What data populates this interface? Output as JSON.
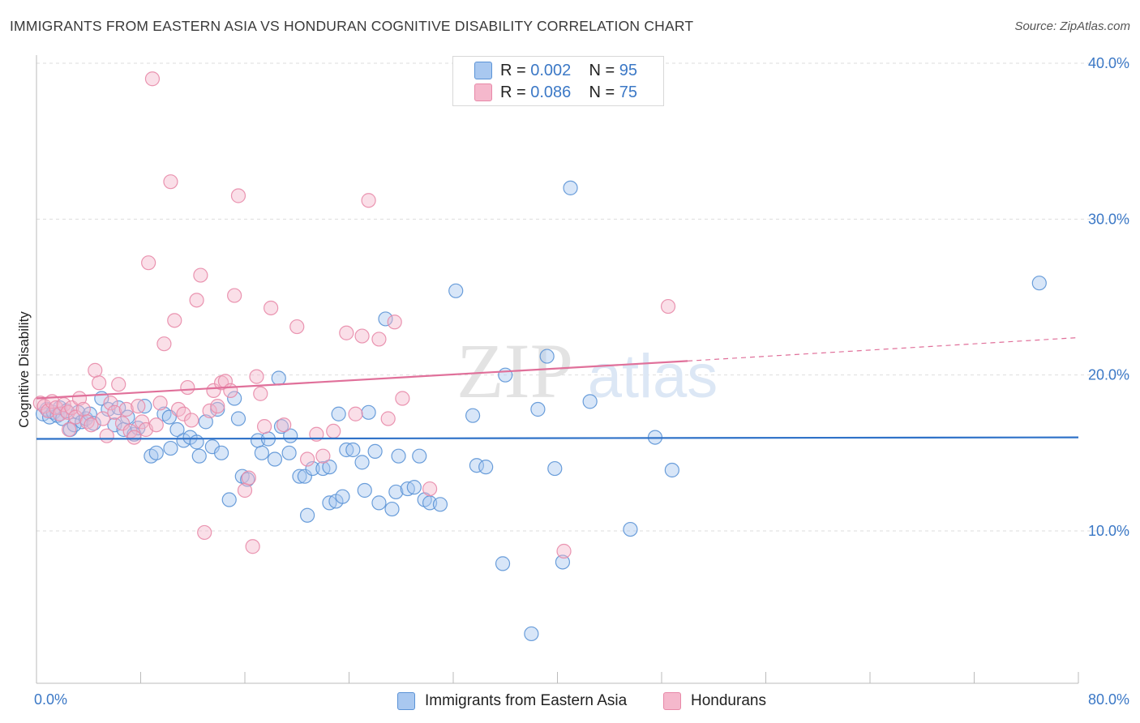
{
  "header": {
    "title": "IMMIGRANTS FROM EASTERN ASIA VS HONDURAN COGNITIVE DISABILITY CORRELATION CHART",
    "source": "Source: ZipAtlas.com"
  },
  "watermark": {
    "zip": "ZIP",
    "atlas": "atlas"
  },
  "legend_top": {
    "rows": [
      {
        "r_label": "R = ",
        "r_value": "0.002",
        "n_label": "N = ",
        "n_value": "95"
      },
      {
        "r_label": "R = ",
        "r_value": "0.086",
        "n_label": "N = ",
        "n_value": "75"
      }
    ]
  },
  "legend_bottom": {
    "items": [
      {
        "label": "Immigrants from Eastern Asia"
      },
      {
        "label": "Hondurans"
      }
    ]
  },
  "colors": {
    "blue_fill": "#a9c8f0",
    "blue_stroke": "#5b93d6",
    "blue_line": "#2f72c8",
    "pink_fill": "#f5b8cc",
    "pink_stroke": "#e889a8",
    "pink_line": "#e0709a",
    "tick_text": "#3b78c6",
    "grid": "#dddddd"
  },
  "chart_data": {
    "type": "scatter",
    "title": "IMMIGRANTS FROM EASTERN ASIA VS HONDURAN COGNITIVE DISABILITY CORRELATION CHART",
    "xlabel": "",
    "ylabel": "Cognitive Disability",
    "xlim": [
      0,
      80
    ],
    "ylim": [
      0,
      42
    ],
    "x_tick_labels": [
      "0.0%",
      "80.0%"
    ],
    "y_ticks": [
      10,
      20,
      30,
      40
    ],
    "y_tick_labels": [
      "10.0%",
      "20.0%",
      "30.0%",
      "40.0%"
    ],
    "grid": true,
    "legend_position": "top-center",
    "series": [
      {
        "name": "Immigrants from Eastern Asia",
        "color": "#5b93d6",
        "points": [
          [
            0.5,
            17.5
          ],
          [
            0.8,
            17.8
          ],
          [
            1.0,
            17.3
          ],
          [
            1.3,
            17.6
          ],
          [
            1.6,
            17.4
          ],
          [
            1.8,
            17.9
          ],
          [
            2.0,
            17.2
          ],
          [
            2.3,
            17.7
          ],
          [
            2.6,
            16.5
          ],
          [
            2.9,
            16.8
          ],
          [
            3.2,
            17.6
          ],
          [
            3.5,
            17.0
          ],
          [
            3.8,
            17.2
          ],
          [
            4.1,
            17.5
          ],
          [
            4.4,
            16.9
          ],
          [
            5.0,
            18.5
          ],
          [
            5.5,
            17.8
          ],
          [
            6.0,
            16.8
          ],
          [
            6.3,
            17.9
          ],
          [
            6.7,
            16.5
          ],
          [
            7.0,
            17.3
          ],
          [
            7.5,
            16.2
          ],
          [
            7.8,
            16.6
          ],
          [
            8.3,
            18.0
          ],
          [
            8.8,
            14.8
          ],
          [
            9.2,
            15.0
          ],
          [
            9.8,
            17.5
          ],
          [
            10.2,
            17.3
          ],
          [
            10.3,
            15.3
          ],
          [
            10.8,
            16.5
          ],
          [
            11.3,
            15.8
          ],
          [
            11.8,
            16.0
          ],
          [
            12.3,
            15.7
          ],
          [
            12.5,
            14.8
          ],
          [
            13.0,
            17.0
          ],
          [
            13.5,
            15.4
          ],
          [
            13.9,
            17.8
          ],
          [
            14.2,
            15.0
          ],
          [
            14.8,
            12.0
          ],
          [
            15.2,
            18.5
          ],
          [
            15.5,
            17.2
          ],
          [
            15.8,
            13.5
          ],
          [
            16.2,
            13.3
          ],
          [
            17.0,
            15.8
          ],
          [
            17.3,
            15.0
          ],
          [
            17.8,
            15.9
          ],
          [
            18.3,
            14.6
          ],
          [
            18.6,
            19.8
          ],
          [
            18.8,
            16.7
          ],
          [
            19.5,
            16.1
          ],
          [
            19.4,
            15.0
          ],
          [
            20.2,
            13.5
          ],
          [
            20.6,
            13.5
          ],
          [
            20.8,
            11.0
          ],
          [
            21.2,
            14.0
          ],
          [
            22.0,
            14.0
          ],
          [
            22.5,
            11.8
          ],
          [
            23.0,
            11.9
          ],
          [
            23.2,
            17.5
          ],
          [
            23.5,
            12.2
          ],
          [
            23.8,
            15.2
          ],
          [
            24.3,
            15.2
          ],
          [
            25.0,
            14.4
          ],
          [
            25.2,
            12.6
          ],
          [
            25.5,
            17.6
          ],
          [
            26.0,
            15.1
          ],
          [
            26.3,
            11.8
          ],
          [
            26.8,
            23.6
          ],
          [
            27.3,
            11.4
          ],
          [
            27.8,
            14.8
          ],
          [
            27.6,
            12.5
          ],
          [
            28.5,
            12.7
          ],
          [
            29.0,
            12.8
          ],
          [
            29.4,
            14.8
          ],
          [
            29.8,
            12.0
          ],
          [
            30.2,
            11.8
          ],
          [
            31.0,
            11.7
          ],
          [
            32.2,
            25.4
          ],
          [
            33.5,
            17.4
          ],
          [
            33.8,
            14.2
          ],
          [
            34.5,
            14.1
          ],
          [
            35.8,
            7.9
          ],
          [
            36.0,
            20.0
          ],
          [
            38.5,
            17.8
          ],
          [
            39.2,
            21.2
          ],
          [
            38.0,
            3.4
          ],
          [
            39.8,
            14.0
          ],
          [
            40.4,
            8.0
          ],
          [
            41.0,
            32.0
          ],
          [
            42.5,
            18.3
          ],
          [
            45.6,
            10.1
          ],
          [
            47.5,
            16.0
          ],
          [
            48.8,
            13.9
          ],
          [
            77.0,
            25.9
          ],
          [
            22.5,
            14.1
          ]
        ]
      },
      {
        "name": "Hondurans",
        "color": "#e889a8",
        "points": [
          [
            0.3,
            18.2
          ],
          [
            0.6,
            18.0
          ],
          [
            0.9,
            17.7
          ],
          [
            1.2,
            18.3
          ],
          [
            1.5,
            17.9
          ],
          [
            1.8,
            17.5
          ],
          [
            2.1,
            18.1
          ],
          [
            2.4,
            17.6
          ],
          [
            2.7,
            17.9
          ],
          [
            3.0,
            17.3
          ],
          [
            3.3,
            18.5
          ],
          [
            3.6,
            17.8
          ],
          [
            3.9,
            17.0
          ],
          [
            4.2,
            16.8
          ],
          [
            4.5,
            20.3
          ],
          [
            4.8,
            19.5
          ],
          [
            5.1,
            17.2
          ],
          [
            5.4,
            16.1
          ],
          [
            5.7,
            18.2
          ],
          [
            6.0,
            17.6
          ],
          [
            6.3,
            19.4
          ],
          [
            6.6,
            16.9
          ],
          [
            6.9,
            17.8
          ],
          [
            7.2,
            16.4
          ],
          [
            7.5,
            16.0
          ],
          [
            7.8,
            18.0
          ],
          [
            8.1,
            17.0
          ],
          [
            8.4,
            16.5
          ],
          [
            8.6,
            27.2
          ],
          [
            8.9,
            39.0
          ],
          [
            9.2,
            16.8
          ],
          [
            9.5,
            18.2
          ],
          [
            9.8,
            22.0
          ],
          [
            10.3,
            32.4
          ],
          [
            10.6,
            23.5
          ],
          [
            10.9,
            17.8
          ],
          [
            11.3,
            17.5
          ],
          [
            11.6,
            19.2
          ],
          [
            11.9,
            17.1
          ],
          [
            12.3,
            24.8
          ],
          [
            12.6,
            26.4
          ],
          [
            12.9,
            9.9
          ],
          [
            13.3,
            17.7
          ],
          [
            13.6,
            19.0
          ],
          [
            13.9,
            18.0
          ],
          [
            14.2,
            19.5
          ],
          [
            14.5,
            19.6
          ],
          [
            14.9,
            19.0
          ],
          [
            15.2,
            25.1
          ],
          [
            15.5,
            31.5
          ],
          [
            16.0,
            12.6
          ],
          [
            16.3,
            13.4
          ],
          [
            16.6,
            9.0
          ],
          [
            16.9,
            19.9
          ],
          [
            17.2,
            18.8
          ],
          [
            17.5,
            16.7
          ],
          [
            18.0,
            24.3
          ],
          [
            19.0,
            16.8
          ],
          [
            20.0,
            23.1
          ],
          [
            20.8,
            14.6
          ],
          [
            21.5,
            16.2
          ],
          [
            22.0,
            14.8
          ],
          [
            22.8,
            16.4
          ],
          [
            23.8,
            22.7
          ],
          [
            24.5,
            17.5
          ],
          [
            25.0,
            22.5
          ],
          [
            25.5,
            31.2
          ],
          [
            26.3,
            22.3
          ],
          [
            27.0,
            17.2
          ],
          [
            27.5,
            23.4
          ],
          [
            28.1,
            18.5
          ],
          [
            30.2,
            12.7
          ],
          [
            40.5,
            8.7
          ],
          [
            48.5,
            24.4
          ],
          [
            2.5,
            16.5
          ]
        ]
      }
    ],
    "trend_lines": [
      {
        "series": "Immigrants from Eastern Asia",
        "x": [
          0,
          80
        ],
        "y": [
          15.9,
          16.0
        ],
        "style": "solid"
      },
      {
        "series": "Hondurans",
        "x": [
          0,
          50
        ],
        "y": [
          18.5,
          20.9
        ],
        "style": "solid"
      },
      {
        "series": "Hondurans",
        "x": [
          50,
          80
        ],
        "y": [
          20.9,
          22.4
        ],
        "style": "dashed"
      }
    ]
  }
}
